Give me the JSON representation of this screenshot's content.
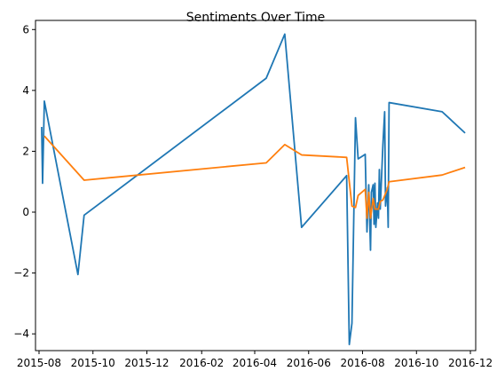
{
  "chart_data": {
    "type": "line",
    "title": "Sentiments Over Time",
    "xlabel": "",
    "ylabel": "",
    "grid": false,
    "legend": "none",
    "xlim": [
      "2015-07-28",
      "2016-12-07"
    ],
    "ylim": [
      -4.55,
      6.3
    ],
    "x_ticks": [
      "2015-08",
      "2015-10",
      "2015-12",
      "2016-02",
      "2016-04",
      "2016-06",
      "2016-08",
      "2016-10",
      "2016-12"
    ],
    "y_ticks": [
      -4,
      -2,
      0,
      2,
      4,
      6
    ],
    "series": [
      {
        "color": "#1f77b4",
        "points": [
          [
            "2015-08-04",
            2.8
          ],
          [
            "2015-08-05",
            0.95
          ],
          [
            "2015-08-07",
            3.65
          ],
          [
            "2015-09-14",
            -2.05
          ],
          [
            "2015-09-21",
            -0.1
          ],
          [
            "2016-04-14",
            4.4
          ],
          [
            "2016-05-05",
            5.85
          ],
          [
            "2016-05-24",
            -0.5
          ],
          [
            "2016-07-14",
            1.2
          ],
          [
            "2016-07-17",
            -4.35
          ],
          [
            "2016-07-20",
            -3.65
          ],
          [
            "2016-07-24",
            3.1
          ],
          [
            "2016-07-27",
            1.75
          ],
          [
            "2016-08-04",
            1.9
          ],
          [
            "2016-08-06",
            -0.65
          ],
          [
            "2016-08-08",
            0.9
          ],
          [
            "2016-08-10",
            -1.25
          ],
          [
            "2016-08-11",
            0.65
          ],
          [
            "2016-08-13",
            0.9
          ],
          [
            "2016-08-14",
            -0.4
          ],
          [
            "2016-08-15",
            0.95
          ],
          [
            "2016-08-16",
            -0.5
          ],
          [
            "2016-08-18",
            0.3
          ],
          [
            "2016-08-19",
            -0.2
          ],
          [
            "2016-08-20",
            1.4
          ],
          [
            "2016-08-21",
            0.1
          ],
          [
            "2016-08-24",
            2.2
          ],
          [
            "2016-08-26",
            3.3
          ],
          [
            "2016-08-27",
            0.2
          ],
          [
            "2016-08-29",
            0.8
          ],
          [
            "2016-08-30",
            -0.5
          ],
          [
            "2016-08-31",
            3.6
          ],
          [
            "2016-10-30",
            3.3
          ],
          [
            "2016-11-25",
            2.6
          ]
        ]
      },
      {
        "color": "#ff7f0e",
        "points": [
          [
            "2015-08-07",
            2.5
          ],
          [
            "2015-09-21",
            1.05
          ],
          [
            "2016-04-14",
            1.62
          ],
          [
            "2016-05-05",
            2.22
          ],
          [
            "2016-05-24",
            1.88
          ],
          [
            "2016-07-14",
            1.8
          ],
          [
            "2016-07-20",
            0.2
          ],
          [
            "2016-07-24",
            0.15
          ],
          [
            "2016-07-27",
            0.55
          ],
          [
            "2016-08-04",
            0.75
          ],
          [
            "2016-08-06",
            -0.2
          ],
          [
            "2016-08-08",
            0.65
          ],
          [
            "2016-08-10",
            -0.2
          ],
          [
            "2016-08-13",
            0.45
          ],
          [
            "2016-08-15",
            0.1
          ],
          [
            "2016-08-19",
            0.1
          ],
          [
            "2016-08-21",
            0.35
          ],
          [
            "2016-08-24",
            0.4
          ],
          [
            "2016-08-29",
            0.75
          ],
          [
            "2016-08-31",
            1.0
          ],
          [
            "2016-10-30",
            1.22
          ],
          [
            "2016-11-25",
            1.47
          ]
        ]
      }
    ]
  }
}
